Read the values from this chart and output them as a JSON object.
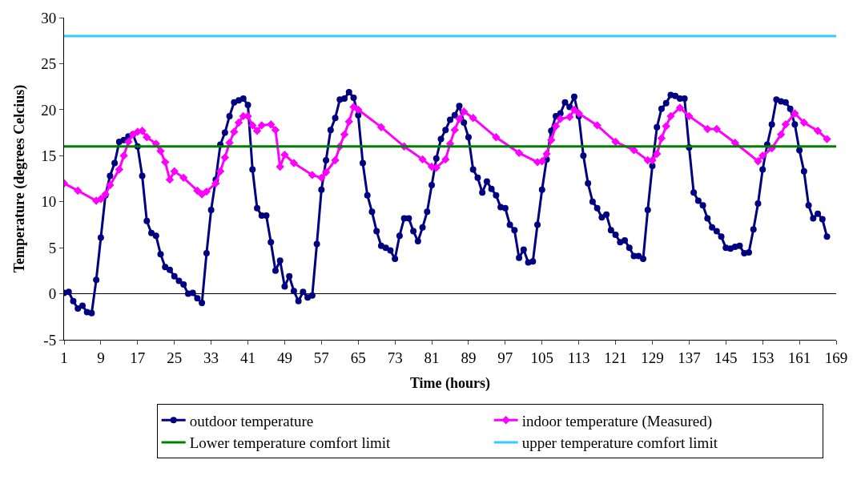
{
  "chart_data": {
    "type": "line",
    "xlabel": "Time (hours)",
    "ylabel": "Temperature (degrees Celcius)",
    "xlim": [
      1,
      169
    ],
    "xticks": [
      1,
      9,
      17,
      25,
      33,
      41,
      49,
      57,
      65,
      73,
      81,
      89,
      97,
      105,
      113,
      121,
      129,
      137,
      145,
      153,
      161,
      169
    ],
    "ylim": [
      -5,
      30
    ],
    "yticks": [
      -5,
      0,
      5,
      10,
      15,
      20,
      25,
      30
    ],
    "legend": "bottom",
    "series": [
      {
        "name": "outdoor temperature",
        "color": "#000080",
        "marker": "circle",
        "x": [
          1,
          2,
          3,
          4,
          5,
          6,
          7,
          8,
          9,
          10,
          11,
          12,
          13,
          14,
          15,
          16,
          17,
          18,
          19,
          20,
          21,
          22,
          23,
          24,
          25,
          26,
          27,
          28,
          29,
          30,
          31,
          32,
          33,
          34,
          35,
          36,
          37,
          38,
          39,
          40,
          41,
          42,
          43,
          44,
          45,
          46,
          47,
          48,
          49,
          50,
          51,
          52,
          53,
          54,
          55,
          56,
          57,
          58,
          59,
          60,
          61,
          62,
          63,
          64,
          65,
          66,
          67,
          68,
          69,
          70,
          71,
          72,
          73,
          74,
          75,
          76,
          77,
          78,
          79,
          80,
          81,
          82,
          83,
          84,
          85,
          86,
          87,
          88,
          89,
          90,
          91,
          92,
          93,
          94,
          95,
          96,
          97,
          98,
          99,
          100,
          101,
          102,
          103,
          104,
          105,
          106,
          107,
          108,
          109,
          110,
          111,
          112,
          113,
          114,
          115,
          116,
          117,
          118,
          119,
          120,
          121,
          122,
          123,
          124,
          125,
          126,
          127,
          128,
          129,
          130,
          131,
          132,
          133,
          134,
          135,
          136,
          137,
          138,
          139,
          140,
          141,
          142,
          143,
          144,
          145,
          146,
          147,
          148,
          149,
          150,
          151,
          152,
          153,
          154,
          155,
          156,
          157,
          158,
          159,
          160,
          161,
          162,
          163,
          164,
          165,
          166,
          167
        ],
        "values": [
          0.1,
          0.2,
          -0.8,
          -1.6,
          -1.3,
          -2.0,
          -2.1,
          1.5,
          6.1,
          10.7,
          12.8,
          14.2,
          16.5,
          16.7,
          17.1,
          17.3,
          16.0,
          12.8,
          7.9,
          6.6,
          6.3,
          4.3,
          2.9,
          2.6,
          1.9,
          1.4,
          1.0,
          0.0,
          0.1,
          -0.5,
          -1.0,
          4.4,
          9.1,
          12.4,
          16.2,
          17.5,
          19.3,
          20.8,
          21.0,
          21.2,
          20.5,
          13.5,
          9.3,
          8.5,
          8.5,
          5.6,
          2.5,
          3.6,
          0.8,
          1.9,
          0.3,
          -0.8,
          0.2,
          -0.4,
          -0.2,
          5.4,
          11.3,
          14.5,
          17.8,
          19.1,
          21.1,
          21.2,
          21.9,
          21.3,
          19.4,
          14.2,
          10.7,
          8.9,
          6.8,
          5.2,
          5.0,
          4.7,
          3.8,
          6.3,
          8.2,
          8.2,
          6.8,
          5.7,
          7.2,
          8.9,
          11.8,
          14.7,
          16.8,
          17.8,
          18.9,
          19.4,
          20.4,
          18.6,
          17.0,
          13.5,
          12.6,
          11.0,
          12.2,
          11.4,
          10.7,
          9.4,
          9.3,
          7.5,
          6.9,
          3.9,
          4.8,
          3.4,
          3.5,
          7.5,
          11.3,
          14.6,
          17.7,
          19.3,
          19.6,
          20.8,
          20.3,
          21.4,
          19.3,
          15.0,
          12.0,
          10.0,
          9.3,
          8.3,
          8.6,
          6.9,
          6.4,
          5.6,
          5.8,
          5.0,
          4.1,
          4.1,
          3.8,
          9.1,
          13.9,
          18.1,
          20.1,
          20.7,
          21.6,
          21.5,
          21.2,
          21.2,
          15.9,
          11.0,
          10.1,
          9.6,
          8.2,
          7.2,
          6.8,
          6.2,
          5.0,
          4.9,
          5.1,
          5.2,
          4.4,
          4.5,
          7.0,
          9.8,
          13.5,
          16.2,
          18.4,
          21.1,
          20.9,
          20.8,
          20.1,
          18.4,
          15.6,
          13.3,
          9.6,
          8.2,
          8.7,
          8.1,
          6.2
        ]
      },
      {
        "name": "indoor temperature (Measured)",
        "color": "#ff00ff",
        "marker": "diamond",
        "x": [
          1,
          4,
          8,
          9,
          10,
          11,
          13,
          14,
          15,
          16,
          17,
          18,
          19,
          21,
          22,
          23,
          24,
          25,
          27,
          30,
          31,
          32,
          34,
          35,
          36,
          37,
          38,
          39,
          40,
          41,
          42,
          43,
          44,
          46,
          47,
          48,
          49,
          51,
          55,
          57,
          58,
          60,
          61,
          62,
          63,
          64,
          65,
          70,
          75,
          79,
          81,
          82,
          84,
          85,
          86,
          87,
          88,
          90,
          95,
          100,
          104,
          105,
          106,
          107,
          108,
          109,
          111,
          112,
          113,
          117,
          121,
          125,
          128,
          129,
          130,
          131,
          132,
          133,
          135,
          137,
          141,
          143,
          147,
          152,
          153,
          155,
          157,
          158,
          160,
          162,
          165,
          167
        ],
        "values": [
          12.0,
          11.2,
          10.1,
          10.3,
          10.8,
          11.8,
          13.5,
          15.0,
          16.5,
          17.3,
          17.6,
          17.7,
          17.0,
          16.3,
          15.5,
          14.3,
          12.4,
          13.3,
          12.6,
          11.2,
          10.8,
          11.1,
          12.0,
          13.3,
          14.8,
          16.4,
          17.6,
          18.6,
          19.3,
          19.3,
          18.3,
          17.7,
          18.3,
          18.4,
          17.8,
          13.8,
          15.1,
          14.2,
          12.9,
          12.6,
          13.2,
          14.5,
          16.0,
          17.3,
          18.7,
          20.3,
          20.0,
          18.1,
          16.0,
          14.6,
          13.8,
          13.7,
          14.6,
          16.3,
          17.8,
          19.0,
          19.8,
          19.1,
          17.0,
          15.3,
          14.3,
          14.4,
          15.2,
          16.7,
          18.2,
          19.0,
          19.2,
          20.0,
          19.6,
          18.3,
          16.5,
          15.6,
          14.5,
          14.5,
          15.2,
          16.9,
          18.2,
          19.3,
          20.2,
          19.3,
          17.9,
          17.9,
          16.4,
          14.4,
          15.0,
          15.8,
          17.3,
          18.4,
          19.6,
          18.6,
          17.7,
          16.8
        ]
      },
      {
        "name": "Lower temperature comfort limit",
        "color": "#008000",
        "marker": "none",
        "x": [
          1,
          169
        ],
        "values": [
          16,
          16
        ]
      },
      {
        "name": "upper temperature comfort limit",
        "color": "#33ccff",
        "marker": "none",
        "x": [
          1,
          169
        ],
        "values": [
          28,
          28
        ]
      }
    ]
  }
}
